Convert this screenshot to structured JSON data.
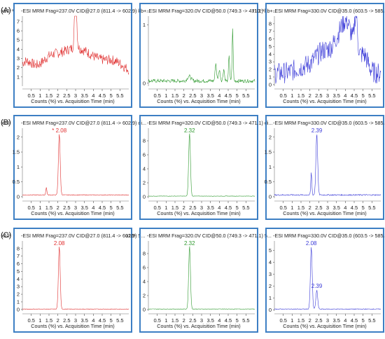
{
  "chart_data": {
    "type": "line",
    "rows": [
      {
        "label": "(A)",
        "panels": [
          {
            "header": "-ESI MRM Frag=237.0V CID@27.0 (811.4 -> 602.9) kb+...",
            "scale_label": "x10⁻¹",
            "y_ticks": [
              1,
              2,
              3,
              4,
              5,
              6,
              7
            ],
            "ylim": [
              0,
              7.6
            ],
            "color": "#e03030",
            "noise": {
              "level": 0.25,
              "amp": 0.15
            },
            "peaks": [
              {
                "x": 0.2,
                "height": 1.1,
                "width": 0.35
              },
              {
                "x": 1.5,
                "height": 0.6,
                "width": 0.4
              },
              {
                "x": 2.3,
                "height": 1.7,
                "width": 0.9
              },
              {
                "x": 3.0,
                "height": 6.0,
                "width": 0.06
              },
              {
                "x": 3.1,
                "height": 1.0,
                "width": 0.6
              },
              {
                "x": 4.0,
                "height": 1.1,
                "width": 0.7
              },
              {
                "x": 5.2,
                "height": 1.0,
                "width": 0.5
              }
            ],
            "noise_amp": 0.55,
            "base": 1.5,
            "peak_labels": []
          },
          {
            "header": "-ESI MRM Frag=320.0V CID@50.0 (749.3 -> 471.1) kb+...",
            "scale_label": "",
            "y_ticks": [
              0,
              1
            ],
            "ylim": [
              -0.05,
              1.15
            ],
            "color": "#2f9a2f",
            "peaks": [
              {
                "x": 2.3,
                "height": 0.08,
                "width": 0.1
              },
              {
                "x": 3.8,
                "height": 0.3,
                "width": 0.04
              },
              {
                "x": 4.0,
                "height": 0.18,
                "width": 0.05
              },
              {
                "x": 4.25,
                "height": 0.2,
                "width": 0.04
              },
              {
                "x": 4.55,
                "height": 0.45,
                "width": 0.03
              },
              {
                "x": 4.75,
                "height": 0.88,
                "width": 0.03
              }
            ],
            "noise_amp": 0.03,
            "base": 0.04,
            "peak_labels": []
          },
          {
            "header": "-ESI MRM Frag=330.0V CID@35.0 (603.5 -> 585.3) kb+...",
            "scale_label": "x10⁻¹",
            "y_ticks": [
              0,
              1,
              2,
              3,
              4,
              5,
              6,
              7,
              8
            ],
            "ylim": [
              -0.2,
              9.0
            ],
            "color": "#3b3bd8",
            "peaks": [
              {
                "x": 1.7,
                "height": 0.8,
                "width": 0.5
              },
              {
                "x": 2.6,
                "height": 1.5,
                "width": 0.4
              },
              {
                "x": 3.2,
                "height": 2.2,
                "width": 0.5
              },
              {
                "x": 3.7,
                "height": 3.0,
                "width": 0.3
              },
              {
                "x": 4.1,
                "height": 3.6,
                "width": 0.25
              },
              {
                "x": 4.6,
                "height": 5.0,
                "width": 0.08
              },
              {
                "x": 4.5,
                "height": 2.5,
                "width": 0.4
              },
              {
                "x": 5.1,
                "height": 1.5,
                "width": 0.2
              }
            ],
            "noise_amp": 1.4,
            "base": 1.5,
            "peak_labels": []
          }
        ]
      },
      {
        "label": "(B)",
        "panels": [
          {
            "header": "-ESI MRM Frag=237.0V CID@27.0 (811.4 -> 602.9) di...",
            "scale_label": "x10¹",
            "y_ticks": [
              0,
              0.5,
              1,
              1.5,
              2
            ],
            "ylim": [
              -0.05,
              2.3
            ],
            "color": "#e03030",
            "peaks": [
              {
                "x": 1.35,
                "height": 0.25,
                "width": 0.03
              },
              {
                "x": 2.08,
                "height": 2.05,
                "width": 0.05
              }
            ],
            "noise_amp": 0.01,
            "base": 0.06,
            "peak_labels": [
              {
                "x": 2.08,
                "text": "* 2.08"
              }
            ]
          },
          {
            "header": "-ESI MRM Frag=320.0V CID@50.0 (749.3 -> 471.1) di...",
            "scale_label": "",
            "y_ticks": [
              0,
              2,
              4,
              6,
              8
            ],
            "ylim": [
              -0.2,
              9.8
            ],
            "color": "#2f9a2f",
            "peaks": [
              {
                "x": 2.32,
                "height": 9.0,
                "width": 0.05
              }
            ],
            "noise_amp": 0.03,
            "base": 0.1,
            "peak_labels": [
              {
                "x": 2.32,
                "text": "2.32"
              }
            ]
          },
          {
            "header": "-ESI MRM Frag=330.0V CID@35.0 (603.5 -> 585.3) di...",
            "scale_label": "",
            "y_ticks": [
              0,
              0.5,
              1,
              1.5,
              2
            ],
            "ylim": [
              -0.05,
              2.3
            ],
            "color": "#3b3bd8",
            "peaks": [
              {
                "x": 2.08,
                "height": 0.75,
                "width": 0.03
              },
              {
                "x": 2.39,
                "height": 2.05,
                "width": 0.05
              }
            ],
            "noise_amp": 0.02,
            "base": 0.06,
            "peak_labels": [
              {
                "x": 2.39,
                "text": "2.39"
              }
            ]
          }
        ]
      },
      {
        "label": "(C)",
        "panels": [
          {
            "header": "-ESI MRM Frag=237.0V CID@27.0 (811.4 -> 602.9) 5...",
            "scale_label": "x10¹",
            "y_ticks": [
              0,
              1,
              2,
              3,
              4,
              5,
              6,
              7,
              8
            ],
            "ylim": [
              -0.2,
              9.0
            ],
            "color": "#e03030",
            "peaks": [
              {
                "x": 2.08,
                "height": 8.2,
                "width": 0.05
              }
            ],
            "noise_amp": 0.03,
            "base": 0.05,
            "peak_labels": [
              {
                "x": 2.08,
                "text": "2.08"
              }
            ]
          },
          {
            "header": "-ESI MRM Frag=320.0V CID@50.0 (749.3 -> 471.1) 5...",
            "scale_label": "x10¹",
            "y_ticks": [
              0,
              2,
              4,
              6,
              8
            ],
            "ylim": [
              -0.2,
              9.8
            ],
            "color": "#2f9a2f",
            "peaks": [
              {
                "x": 2.32,
                "height": 9.0,
                "width": 0.05
              }
            ],
            "noise_amp": 0.03,
            "base": 0.08,
            "peak_labels": [
              {
                "x": 2.32,
                "text": "2.32"
              }
            ]
          },
          {
            "header": "-ESI MRM Frag=330.0V CID@35.0 (603.5 -> 585.3) 5...",
            "scale_label": "",
            "y_ticks": [
              0,
              1,
              2,
              3,
              4,
              5
            ],
            "ylim": [
              -0.1,
              5.8
            ],
            "color": "#3b3bd8",
            "peaks": [
              {
                "x": 2.08,
                "height": 5.2,
                "width": 0.05
              },
              {
                "x": 2.39,
                "height": 1.6,
                "width": 0.05
              }
            ],
            "noise_amp": 0.03,
            "base": 0.06,
            "peak_labels": [
              {
                "x": 2.08,
                "text": "2.08"
              },
              {
                "x": 2.39,
                "text": "2.39"
              }
            ]
          }
        ]
      }
    ],
    "x_ticks": [
      0.5,
      1,
      1.5,
      2,
      2.5,
      3,
      3.5,
      4,
      4.5,
      5,
      5.5
    ],
    "xlim": [
      0,
      6
    ],
    "xlabel": "Counts (%) vs. Acquisition Time (min)",
    "frame_color": "#3d7fc4"
  }
}
